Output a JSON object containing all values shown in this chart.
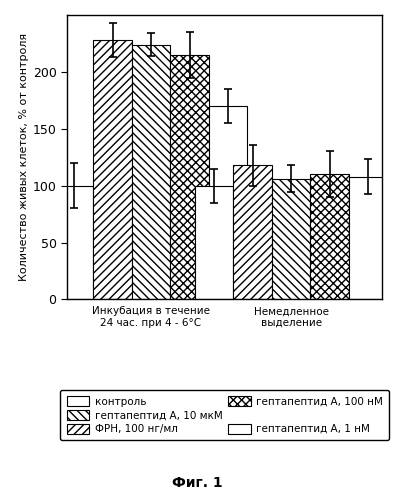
{
  "ylabel": "Количество живых клеток, % от контроля",
  "fig_label": "Фиг. 1",
  "group1_label": "Инкубация в течение\n24 час. при 4 - 6°C",
  "group2_label": "Немедленное\nвыделение",
  "series": [
    {
      "name": "контроль",
      "values": [
        100,
        100
      ],
      "errors": [
        20,
        15
      ],
      "hatch": "",
      "facecolor": "white",
      "edgecolor": "black"
    },
    {
      "name": "ФРН, 100 нг/мл",
      "values": [
        228,
        118
      ],
      "errors": [
        15,
        18
      ],
      "hatch": "////",
      "facecolor": "white",
      "edgecolor": "black"
    },
    {
      "name": "гептапептид A, 10 мкМ",
      "values": [
        224,
        106
      ],
      "errors": [
        10,
        12
      ],
      "hatch": "\\\\\\\\",
      "facecolor": "white",
      "edgecolor": "black"
    },
    {
      "name": "гептапептид A, 100 нМ",
      "values": [
        215,
        110
      ],
      "errors": [
        20,
        20
      ],
      "hatch": "xxxx",
      "facecolor": "white",
      "edgecolor": "black"
    },
    {
      "name": "гептапептид A, 1 нМ",
      "values": [
        170,
        108
      ],
      "errors": [
        15,
        15
      ],
      "hatch": "====",
      "facecolor": "white",
      "edgecolor": "black"
    }
  ],
  "ylim": [
    0,
    250
  ],
  "yticks": [
    0,
    50,
    100,
    150,
    200
  ],
  "bar_width": 0.11,
  "group_centers": [
    0.32,
    0.72
  ],
  "figsize": [
    3.94,
    4.99
  ],
  "dpi": 100,
  "legend_order": [
    0,
    2,
    1,
    3,
    -1,
    4
  ]
}
